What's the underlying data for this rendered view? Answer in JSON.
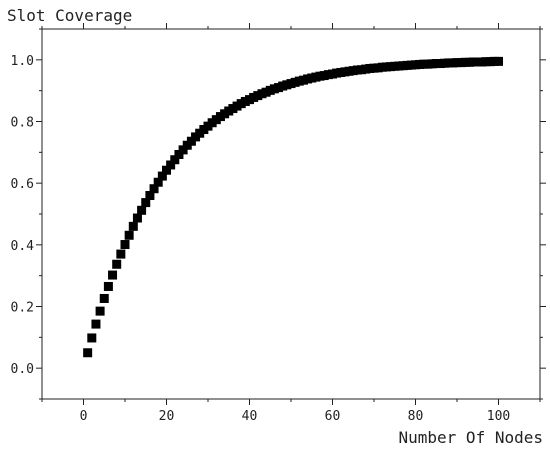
{
  "chart_data": {
    "type": "scatter",
    "ylabel": "Slot Coverage",
    "xlabel": "Number Of Nodes",
    "xlim": [
      -10,
      110
    ],
    "ylim": [
      -0.1,
      1.1
    ],
    "xticks": [
      0,
      20,
      40,
      60,
      80,
      100
    ],
    "xtick_labels": [
      "0",
      "20",
      "40",
      "60",
      "80",
      "100"
    ],
    "yticks": [
      0.0,
      0.2,
      0.4,
      0.6,
      0.8,
      1.0
    ],
    "ytick_labels": [
      "0.0",
      "0.2",
      "0.4",
      "0.6",
      "0.8",
      "1.0"
    ],
    "grid": false,
    "marker": "square",
    "marker_color": "#000000",
    "series": [
      {
        "x": [
          1,
          2,
          3,
          4,
          5,
          6,
          7,
          8,
          9,
          10,
          11,
          12,
          13,
          14,
          15,
          16,
          17,
          18,
          19,
          20,
          21,
          22,
          23,
          24,
          25,
          26,
          27,
          28,
          29,
          30,
          31,
          32,
          33,
          34,
          35,
          36,
          37,
          38,
          39,
          40,
          41,
          42,
          43,
          44,
          45,
          46,
          47,
          48,
          49,
          50,
          51,
          52,
          53,
          54,
          55,
          56,
          57,
          58,
          59,
          60,
          61,
          62,
          63,
          64,
          65,
          66,
          67,
          68,
          69,
          70,
          71,
          72,
          73,
          74,
          75,
          76,
          77,
          78,
          79,
          80,
          81,
          82,
          83,
          84,
          85,
          86,
          87,
          88,
          89,
          90,
          91,
          92,
          93,
          94,
          95,
          96,
          97,
          98,
          99,
          100
        ],
        "y": [
          0.05,
          0.098,
          0.143,
          0.185,
          0.226,
          0.265,
          0.302,
          0.337,
          0.37,
          0.401,
          0.431,
          0.46,
          0.487,
          0.512,
          0.537,
          0.56,
          0.582,
          0.603,
          0.623,
          0.642,
          0.659,
          0.676,
          0.693,
          0.708,
          0.723,
          0.736,
          0.75,
          0.762,
          0.774,
          0.785,
          0.796,
          0.806,
          0.816,
          0.825,
          0.834,
          0.842,
          0.85,
          0.858,
          0.865,
          0.871,
          0.878,
          0.884,
          0.89,
          0.895,
          0.901,
          0.906,
          0.91,
          0.915,
          0.919,
          0.923,
          0.927,
          0.931,
          0.934,
          0.938,
          0.941,
          0.944,
          0.947,
          0.949,
          0.952,
          0.954,
          0.957,
          0.959,
          0.961,
          0.963,
          0.965,
          0.967,
          0.968,
          0.97,
          0.972,
          0.973,
          0.974,
          0.976,
          0.977,
          0.978,
          0.979,
          0.98,
          0.981,
          0.982,
          0.983,
          0.984,
          0.985,
          0.986,
          0.986,
          0.987,
          0.988,
          0.988,
          0.989,
          0.99,
          0.99,
          0.991,
          0.991,
          0.992,
          0.992,
          0.993,
          0.993,
          0.993,
          0.994,
          0.994,
          0.995,
          0.995
        ]
      }
    ]
  }
}
